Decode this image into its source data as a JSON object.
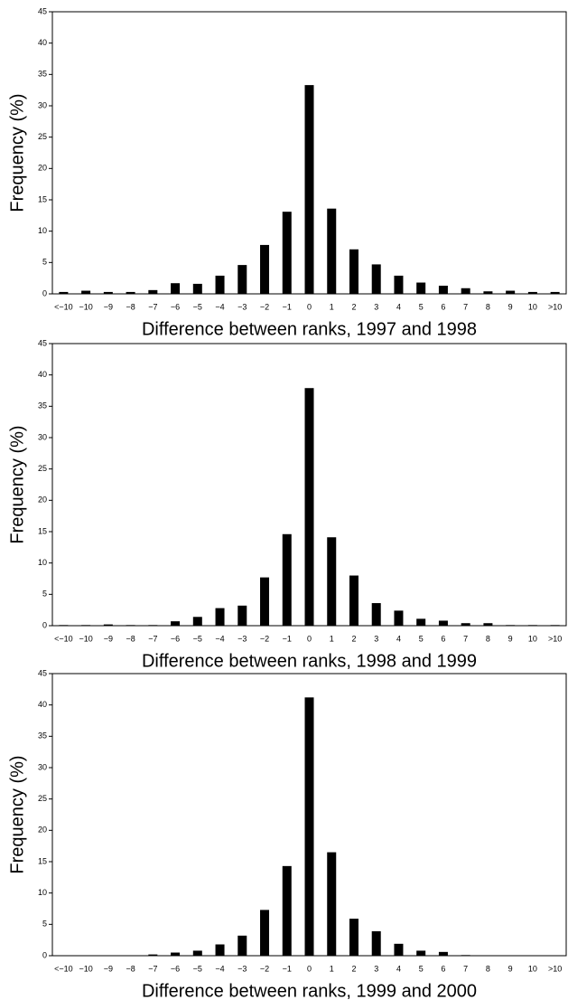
{
  "chart_data": [
    {
      "type": "bar",
      "x_label": "Difference between ranks, 1997 and 1998",
      "y_label": "Frequency (%)",
      "color": "#000000",
      "categories": [
        "<−10",
        "−10",
        "−9",
        "−8",
        "−7",
        "−6",
        "−5",
        "−4",
        "−3",
        "−2",
        "−1",
        "0",
        "1",
        "2",
        "3",
        "4",
        "5",
        "6",
        "7",
        "8",
        "9",
        "10",
        ">10"
      ],
      "values": [
        0.3,
        0.5,
        0.3,
        0.3,
        0.6,
        1.7,
        1.6,
        2.9,
        4.6,
        7.8,
        13.1,
        33.3,
        13.6,
        7.1,
        4.7,
        2.9,
        1.8,
        1.3,
        0.9,
        0.4,
        0.5,
        0.3,
        0.3
      ],
      "ylim": [
        0,
        45
      ],
      "yticks": [
        0,
        5,
        10,
        15,
        20,
        25,
        30,
        35,
        40,
        45
      ]
    },
    {
      "type": "bar",
      "x_label": "Difference between ranks, 1998 and 1999",
      "y_label": "Frequency (%)",
      "color": "#000000",
      "categories": [
        "<−10",
        "−10",
        "−9",
        "−8",
        "−7",
        "−6",
        "−5",
        "−4",
        "−3",
        "−2",
        "−1",
        "0",
        "1",
        "2",
        "3",
        "4",
        "5",
        "6",
        "7",
        "8",
        "9",
        "10",
        ">10"
      ],
      "values": [
        0.1,
        0.1,
        0.2,
        0.1,
        0.1,
        0.7,
        1.4,
        2.8,
        3.2,
        7.7,
        14.6,
        37.9,
        14.1,
        8.0,
        3.6,
        2.4,
        1.1,
        0.8,
        0.4,
        0.4,
        0.1,
        0.1,
        0.1
      ],
      "ylim": [
        0,
        45
      ],
      "yticks": [
        0,
        5,
        10,
        15,
        20,
        25,
        30,
        35,
        40,
        45
      ]
    },
    {
      "type": "bar",
      "x_label": "Difference between ranks, 1999 and 2000",
      "y_label": "Frequency (%)",
      "color": "#000000",
      "categories": [
        "<−10",
        "−10",
        "−9",
        "−8",
        "−7",
        "−6",
        "−5",
        "−4",
        "−3",
        "−2",
        "−1",
        "0",
        "1",
        "2",
        "3",
        "4",
        "5",
        "6",
        "7",
        "8",
        "9",
        "10",
        ">10"
      ],
      "values": [
        0,
        0,
        0,
        0,
        0.2,
        0.5,
        0.8,
        1.8,
        3.2,
        7.3,
        14.3,
        41.2,
        16.5,
        5.9,
        3.9,
        1.9,
        0.8,
        0.6,
        0.1,
        0,
        0,
        0,
        0
      ],
      "ylim": [
        0,
        45
      ],
      "yticks": [
        0,
        5,
        10,
        15,
        20,
        25,
        30,
        35,
        40,
        45
      ]
    }
  ]
}
